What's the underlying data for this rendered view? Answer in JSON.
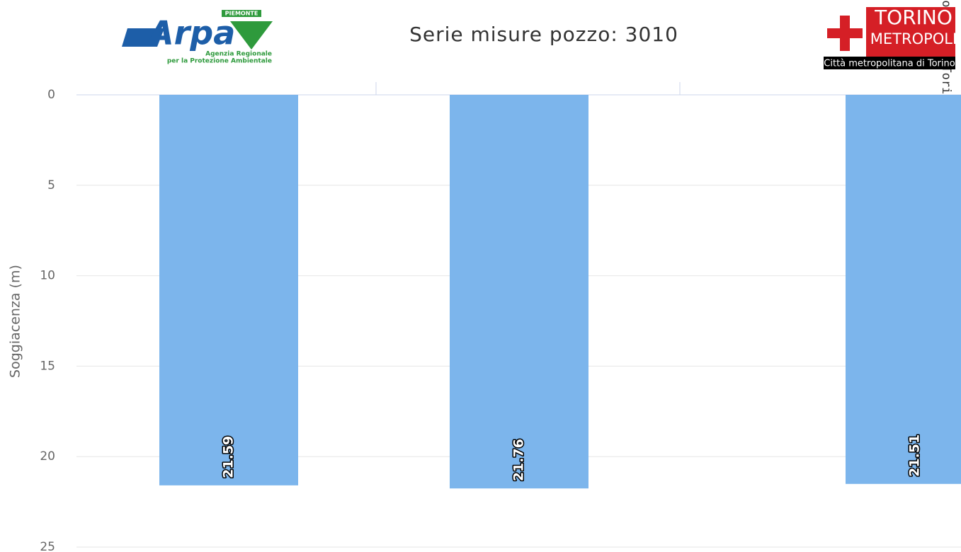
{
  "chart_data": {
    "type": "bar",
    "title": "Serie misure pozzo: 3010",
    "y_label": "Soggiacenza (m)",
    "categories": [
      null,
      null,
      null
    ],
    "values": [
      21.59,
      21.76,
      21.51
    ],
    "color": "#7cb5ec",
    "ylim": [
      0,
      25
    ],
    "yticks": [
      0,
      5,
      10,
      15,
      20,
      25
    ],
    "y_reversed": true,
    "grid": true,
    "logos": {
      "arpa": {
        "region": "PIEMONTE",
        "name": "Arpa",
        "line1": "Agenzia Regionale",
        "line2": "per la Protezione Ambientale"
      },
      "torino": {
        "name1": "TORINO",
        "name2": "METROPOLI",
        "caption": "Città metropolitana di Torino"
      }
    },
    "side_text": "Comune di Torino"
  }
}
